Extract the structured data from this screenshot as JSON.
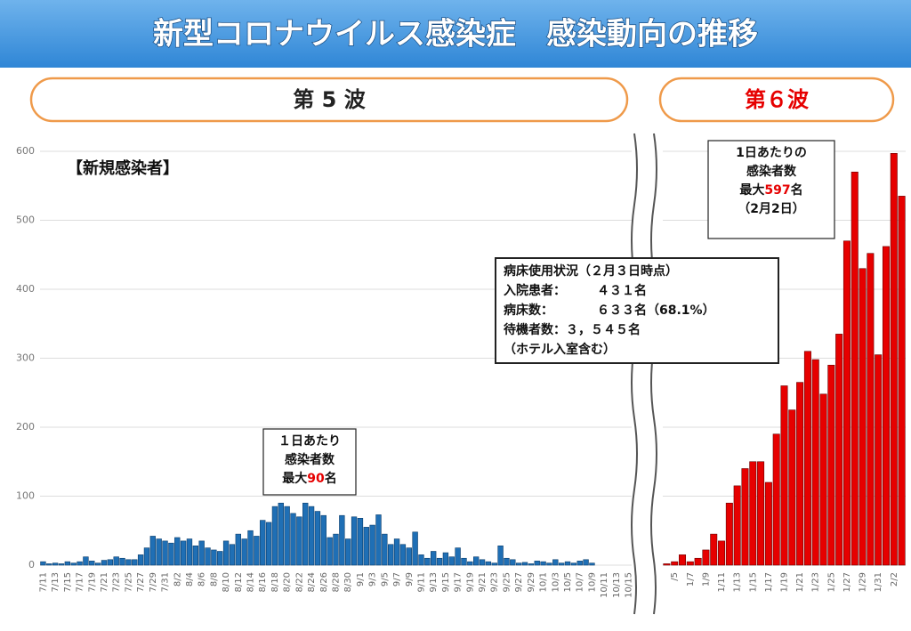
{
  "header": {
    "title": "新型コロナウイルス感染症　感染動向の推移"
  },
  "chart_data": [
    {
      "type": "bar",
      "wave_label": "第 5 波",
      "subtitle": "【新規感染者】",
      "color": "#1f6fb5",
      "categories": [
        "7/11",
        null,
        "7/13",
        null,
        "7/15",
        null,
        "7/17",
        null,
        "7/19",
        null,
        "7/21",
        null,
        "7/23",
        null,
        "7/25",
        null,
        "7/27",
        null,
        "7/29",
        null,
        "7/31",
        null,
        "8/2",
        null,
        "8/4",
        null,
        "8/6",
        null,
        "8/8",
        null,
        "8/10",
        null,
        "8/12",
        null,
        "8/14",
        null,
        "8/16",
        null,
        "8/18",
        null,
        "8/20",
        null,
        "8/22",
        null,
        "8/24",
        null,
        "8/26",
        null,
        "8/28",
        null,
        "8/30",
        null,
        "9/1",
        null,
        "9/3",
        null,
        "9/5",
        null,
        "9/7",
        null,
        "9/9",
        null,
        "9/11",
        null,
        "9/13",
        null,
        "9/15",
        null,
        "9/17",
        null,
        "9/19",
        null,
        "9/21",
        null,
        "9/23",
        null,
        "9/25",
        null,
        "9/27",
        null,
        "9/29",
        null,
        "10/1",
        null,
        "10/3",
        null,
        "10/5",
        null,
        "10/7",
        null,
        "10/9",
        null,
        "10/11",
        null,
        "10/13",
        null,
        "10/15"
      ],
      "values": [
        5,
        2,
        3,
        2,
        5,
        3,
        5,
        12,
        6,
        3,
        7,
        8,
        12,
        10,
        8,
        8,
        15,
        25,
        42,
        38,
        35,
        32,
        40,
        35,
        38,
        28,
        35,
        25,
        22,
        20,
        35,
        30,
        45,
        38,
        50,
        42,
        65,
        62,
        85,
        90,
        85,
        75,
        70,
        90,
        85,
        78,
        72,
        40,
        45,
        72,
        38,
        70,
        68,
        55,
        58,
        73,
        45,
        30,
        38,
        30,
        25,
        48,
        15,
        10,
        20,
        10,
        18,
        12,
        25,
        10,
        5,
        12,
        8,
        5,
        3,
        28,
        10,
        8,
        3,
        4,
        2,
        6,
        5,
        3,
        8,
        3,
        5,
        3,
        6,
        8,
        3,
        0,
        0,
        0,
        0,
        0,
        0
      ],
      "ylim": [
        0,
        600
      ],
      "yticks": [
        0,
        100,
        200,
        300,
        400,
        500,
        600
      ],
      "grid": true,
      "annotation": {
        "lines": [
          "１日あたり",
          "感染者数"
        ],
        "max_prefix": "最大",
        "max_value": 90,
        "max_suffix": "名"
      }
    },
    {
      "type": "bar",
      "wave_label": "第６波",
      "color": "#e60000",
      "categories": [
        null,
        "/5",
        null,
        "1/7",
        null,
        "1/9",
        null,
        "1/11",
        null,
        "1/13",
        null,
        "1/15",
        null,
        "1/17",
        null,
        "1/19",
        null,
        "1/21",
        null,
        "1/23",
        null,
        "1/25",
        null,
        "1/27",
        null,
        "1/29",
        null,
        "1/31",
        null,
        "2/2",
        null
      ],
      "values": [
        2,
        5,
        15,
        5,
        10,
        22,
        45,
        35,
        90,
        115,
        140,
        150,
        150,
        120,
        190,
        260,
        225,
        265,
        310,
        298,
        248,
        290,
        335,
        470,
        570,
        430,
        452,
        305,
        462,
        597,
        535
      ],
      "ylim": [
        0,
        600
      ],
      "yticks": [
        0,
        100,
        200,
        300,
        400,
        500,
        600
      ],
      "grid": true,
      "annotation": {
        "lines": [
          "1日あたりの",
          "感染者数"
        ],
        "max_prefix": "最大",
        "max_value": 597,
        "max_suffix": "名",
        "note": "（2月2日）"
      }
    }
  ],
  "bed_status": {
    "lines": [
      "病床使用状況（２月３日時点）",
      "入院患者：　　　４３１名",
      "病床数：　　　　６３３名（68.1%）",
      "待機者数：３，５４５名",
      "（ホテル入室含む）"
    ]
  }
}
